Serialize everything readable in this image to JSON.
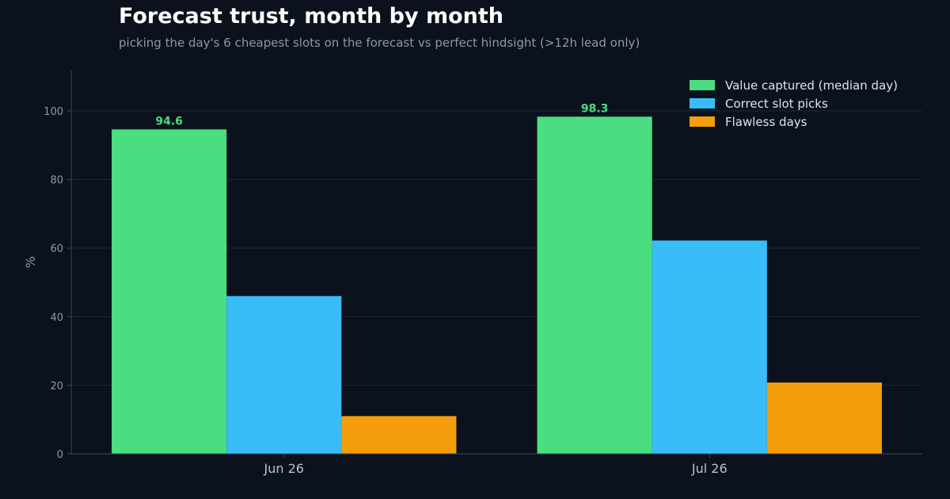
{
  "chart_data": {
    "type": "bar",
    "title": "Forecast trust, month by month",
    "subtitle": "picking the day's 6 cheapest slots on the forecast vs perfect hindsight (>12h lead only)",
    "xlabel": "",
    "ylabel": "%",
    "categories": [
      "Jun 26",
      "Jul 26"
    ],
    "series": [
      {
        "name": "Value captured (median day)",
        "values": [
          94.6,
          98.3
        ],
        "color": "#4ade80",
        "data_labels": [
          "94.6",
          "98.3"
        ]
      },
      {
        "name": "Correct slot picks",
        "values": [
          46,
          62.2
        ],
        "color": "#38bdf8"
      },
      {
        "name": "Flawless days",
        "values": [
          11,
          20.8
        ],
        "color": "#f59e0b"
      }
    ],
    "ylim": [
      0,
      112
    ],
    "yticks": [
      0,
      20,
      40,
      60,
      80,
      100
    ],
    "grid": true,
    "legend_position": "top-right"
  }
}
